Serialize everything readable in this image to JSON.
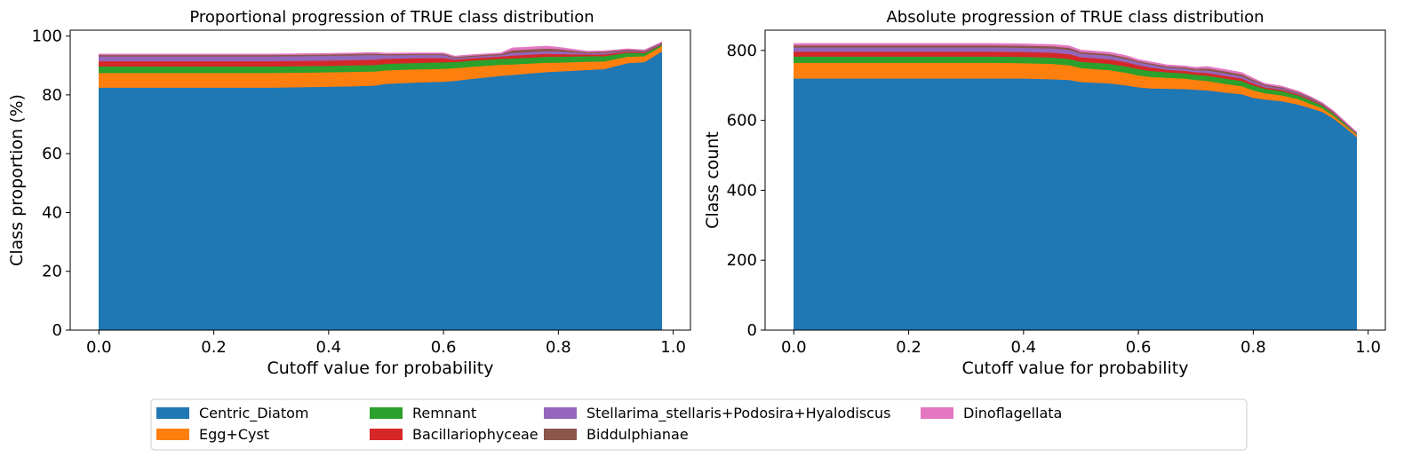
{
  "legend": {
    "entries": [
      {
        "name": "Centric_Diatom",
        "color": "#1f77b4"
      },
      {
        "name": "Egg+Cyst",
        "color": "#ff7f0e"
      },
      {
        "name": "Remnant",
        "color": "#2ca02c"
      },
      {
        "name": "Bacillariophyceae",
        "color": "#d62728"
      },
      {
        "name": "Stellarima_stellaris+Podosira+Hyalodiscus",
        "color": "#9467bd"
      },
      {
        "name": "Biddulphianae",
        "color": "#8c564b"
      },
      {
        "name": "Dinoflagellata",
        "color": "#e377c2"
      }
    ],
    "placement": "bottom-center"
  },
  "chart_data": [
    {
      "type": "area",
      "stacked": true,
      "title": "Proportional progression of TRUE class distribution",
      "xlabel": "Cutoff value for probability",
      "ylabel": "Class proportion (%)",
      "xlim": [
        -0.05,
        1.03
      ],
      "ylim": [
        0,
        102
      ],
      "xticks": [
        0.0,
        0.2,
        0.4,
        0.6,
        0.8,
        1.0
      ],
      "xtick_labels": [
        "0.0",
        "0.2",
        "0.4",
        "0.6",
        "0.8",
        "1.0"
      ],
      "yticks": [
        0,
        20,
        40,
        60,
        80,
        100
      ],
      "ytick_labels": [
        "0",
        "20",
        "40",
        "60",
        "80",
        "100"
      ],
      "grid": false,
      "x": [
        0.0,
        0.1,
        0.2,
        0.3,
        0.4,
        0.45,
        0.48,
        0.5,
        0.55,
        0.6,
        0.62,
        0.65,
        0.7,
        0.72,
        0.75,
        0.78,
        0.8,
        0.85,
        0.88,
        0.9,
        0.92,
        0.95,
        0.98
      ],
      "series": [
        {
          "name": "Centric_Diatom",
          "values": [
            82.5,
            82.5,
            82.5,
            82.5,
            82.8,
            83.0,
            83.2,
            83.8,
            84.2,
            84.5,
            84.8,
            85.5,
            86.5,
            86.8,
            87.3,
            87.8,
            88.0,
            88.5,
            88.8,
            89.8,
            90.8,
            91.2,
            94.8
          ]
        },
        {
          "name": "Egg+Cyst",
          "values": [
            5.0,
            5.0,
            5.0,
            5.0,
            4.9,
            4.9,
            4.8,
            4.6,
            4.5,
            4.4,
            4.3,
            4.1,
            3.8,
            3.6,
            3.4,
            3.2,
            3.0,
            2.8,
            2.6,
            2.4,
            2.2,
            2.0,
            1.8
          ]
        },
        {
          "name": "Remnant",
          "values": [
            2.2,
            2.2,
            2.2,
            2.2,
            2.2,
            2.2,
            2.2,
            2.2,
            2.2,
            2.2,
            2.1,
            2.1,
            2.0,
            2.0,
            2.0,
            2.0,
            2.0,
            1.9,
            1.8,
            1.6,
            1.4,
            1.0,
            0.5
          ]
        },
        {
          "name": "Bacillariophyceae",
          "values": [
            1.8,
            1.8,
            1.8,
            1.8,
            1.8,
            1.8,
            1.8,
            1.7,
            1.6,
            1.5,
            0.8,
            0.8,
            0.8,
            1.0,
            1.0,
            1.0,
            0.9,
            0.6,
            0.6,
            0.5,
            0.4,
            0.3,
            0.2
          ]
        },
        {
          "name": "Stellarima_stellaris+Podosira+Hyalodiscus",
          "values": [
            1.6,
            1.6,
            1.6,
            1.6,
            1.6,
            1.6,
            1.6,
            1.2,
            1.1,
            1.0,
            0.5,
            0.5,
            0.5,
            0.9,
            0.9,
            0.9,
            0.9,
            0.4,
            0.5,
            0.4,
            0.3,
            0.3,
            0.3
          ]
        },
        {
          "name": "Biddulphianae",
          "values": [
            0.5,
            0.5,
            0.5,
            0.5,
            0.5,
            0.5,
            0.5,
            0.4,
            0.4,
            0.4,
            0.4,
            0.4,
            0.4,
            0.9,
            0.9,
            0.9,
            0.8,
            0.4,
            0.4,
            0.4,
            0.4,
            0.3,
            0.2
          ]
        },
        {
          "name": "Dinoflagellata",
          "values": [
            0.3,
            0.3,
            0.3,
            0.3,
            0.3,
            0.3,
            0.3,
            0.3,
            0.3,
            0.3,
            0.3,
            0.3,
            0.3,
            0.8,
            0.8,
            0.8,
            0.6,
            0.3,
            0.3,
            0.2,
            0.2,
            0.2,
            0.2
          ]
        }
      ]
    },
    {
      "type": "area",
      "stacked": true,
      "title": "Absolute progression of TRUE class distribution",
      "xlabel": "Cutoff value for probability",
      "ylabel": "Class count",
      "xlim": [
        -0.05,
        1.03
      ],
      "ylim": [
        0,
        858
      ],
      "xticks": [
        0.0,
        0.2,
        0.4,
        0.6,
        0.8,
        1.0
      ],
      "xtick_labels": [
        "0.0",
        "0.2",
        "0.4",
        "0.6",
        "0.8",
        "1.0"
      ],
      "yticks": [
        0,
        200,
        400,
        600,
        800
      ],
      "ytick_labels": [
        "0",
        "200",
        "400",
        "600",
        "800"
      ],
      "grid": false,
      "x": [
        0.0,
        0.1,
        0.2,
        0.3,
        0.35,
        0.4,
        0.45,
        0.48,
        0.5,
        0.55,
        0.58,
        0.6,
        0.62,
        0.65,
        0.68,
        0.7,
        0.72,
        0.75,
        0.78,
        0.8,
        0.82,
        0.85,
        0.88,
        0.9,
        0.92,
        0.94,
        0.96,
        0.98
      ],
      "series": [
        {
          "name": "Centric_Diatom",
          "values": [
            720,
            720,
            720,
            720,
            720,
            720,
            718,
            716,
            710,
            706,
            700,
            695,
            692,
            691,
            690,
            688,
            686,
            680,
            675,
            665,
            660,
            655,
            645,
            635,
            625,
            605,
            580,
            553
          ]
        },
        {
          "name": "Egg+Cyst",
          "values": [
            45,
            45,
            45,
            45,
            45,
            44,
            44,
            42,
            40,
            38,
            36,
            34,
            33,
            31,
            30,
            28,
            27,
            25,
            23,
            21,
            18,
            17,
            15,
            12,
            10,
            8,
            6,
            6
          ]
        },
        {
          "name": "Remnant",
          "values": [
            18,
            18,
            18,
            18,
            18,
            18,
            18,
            18,
            18,
            18,
            18,
            18,
            17,
            16,
            15,
            15,
            15,
            15,
            15,
            14,
            13,
            12,
            11,
            10,
            8,
            6,
            4,
            2
          ]
        },
        {
          "name": "Bacillariophyceae",
          "values": [
            14,
            14,
            14,
            14,
            14,
            14,
            14,
            14,
            13,
            13,
            12,
            11,
            10,
            7,
            7,
            7,
            8,
            8,
            7,
            6,
            4,
            4,
            3,
            3,
            2,
            2,
            1,
            1
          ]
        },
        {
          "name": "Stellarima_stellaris+Podosira+Hyalodiscus",
          "values": [
            12,
            12,
            12,
            12,
            12,
            12,
            12,
            12,
            10,
            10,
            9,
            8,
            8,
            6,
            6,
            6,
            7,
            7,
            6,
            6,
            4,
            4,
            3,
            3,
            2,
            2,
            2,
            2
          ]
        },
        {
          "name": "Biddulphianae",
          "values": [
            6,
            6,
            6,
            6,
            6,
            6,
            6,
            6,
            5,
            5,
            5,
            4,
            4,
            4,
            4,
            4,
            6,
            6,
            6,
            5,
            4,
            3,
            3,
            3,
            2,
            2,
            2,
            1
          ]
        },
        {
          "name": "Dinoflagellata",
          "values": [
            5,
            5,
            5,
            5,
            5,
            5,
            5,
            5,
            5,
            5,
            5,
            4,
            4,
            4,
            4,
            4,
            5,
            5,
            5,
            4,
            3,
            3,
            3,
            2,
            2,
            2,
            2,
            2
          ]
        }
      ]
    }
  ]
}
